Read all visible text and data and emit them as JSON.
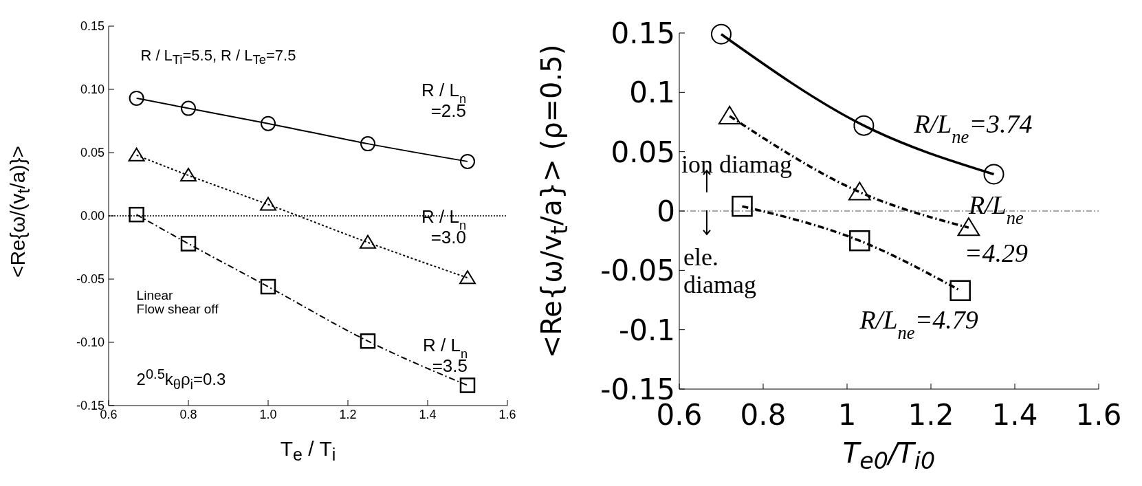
{
  "chart_data": [
    {
      "type": "line",
      "xlabel": "T$_{e}$ / T$_{i}$",
      "ylabel": "<Re{ω/(v$_{t}$/a)}>",
      "x": [
        0.67,
        0.8,
        1.0,
        1.25,
        1.5
      ],
      "series": [
        {
          "name": "R / L$_{n}$\n=2.5",
          "color": "#000000",
          "marker": "circle",
          "line_style": "solid",
          "values": [
            0.093,
            0.085,
            0.073,
            0.057,
            0.043
          ]
        },
        {
          "name": "R / L$_{n}$\n=3.0",
          "color": "#000000",
          "marker": "triangle",
          "line_style": "dotted",
          "values": [
            0.048,
            0.032,
            0.009,
            -0.021,
            -0.049
          ]
        },
        {
          "name": "R / L$_{n}$\n=3.5",
          "color": "#000000",
          "marker": "square",
          "line_style": "dashed",
          "values": [
            0.001,
            -0.022,
            -0.056,
            -0.099,
            -0.134
          ]
        }
      ],
      "xlim": [
        0.6,
        1.6
      ],
      "xticks": [
        0.6,
        0.8,
        {
          "value": 1,
          "label": "1.0"
        },
        1.2,
        1.4,
        1.6
      ],
      "ylim": [
        -0.15,
        0.15
      ],
      "yticks": [
        {
          "value": -0.15,
          "label": "-0.15"
        },
        {
          "value": -0.1,
          "label": "-0.10"
        },
        {
          "value": -0.05,
          "label": "-0.05"
        },
        {
          "value": 0,
          "label": "0.00"
        },
        {
          "value": 0.05,
          "label": "0.05"
        },
        {
          "value": 0.1,
          "label": "0.10"
        },
        {
          "value": 0.15,
          "label": "0.15"
        }
      ],
      "ref_lines": [
        {
          "axis": "y",
          "value": 0,
          "line_style": "dotted",
          "color": "#000000"
        }
      ],
      "annotations": [
        "R / L$_{Ti}$=5.5, R / L$_{Te}$=7.5",
        "Linear\nFlow shear off",
        "2$^{0.5}$k$_{θ}$ρ$_{i}$=0.3"
      ]
    },
    {
      "type": "line",
      "xlabel": "T$_{e0}$/T$_{i0}$",
      "ylabel": "<Re{ω/v$_{t}$/a}> (ρ=0.5)",
      "series": [
        {
          "name": "R/L$_{ne}$=3.74",
          "color": "#000000",
          "marker": "circle",
          "line_style": "solid",
          "x": [
            0.7,
            1.04,
            1.35
          ],
          "values": [
            0.149,
            0.072,
            0.031
          ]
        },
        {
          "name": "R/L$_{ne}$\n=4.29",
          "color": "#000000",
          "marker": "triangle",
          "line_style": "dashed",
          "x": [
            0.72,
            1.03,
            1.29
          ],
          "values": [
            0.08,
            0.016,
            -0.014
          ]
        },
        {
          "name": "R/L$_{ne}$=4.79",
          "color": "#000000",
          "marker": "square",
          "line_style": "dashed",
          "x": [
            0.75,
            1.03,
            1.27
          ],
          "values": [
            0.004,
            -0.025,
            -0.067
          ]
        }
      ],
      "xlim": [
        0.6,
        1.6
      ],
      "xticks": [
        0.6,
        0.8,
        1,
        1.2,
        1.4,
        1.6
      ],
      "ylim": [
        -0.15,
        0.15
      ],
      "yticks": [
        -0.15,
        -0.1,
        -0.05,
        0,
        0.05,
        0.1,
        0.15
      ],
      "ref_lines": [
        {
          "axis": "y",
          "value": 0,
          "line_style": "dashed",
          "color": "#888888"
        }
      ],
      "annotations": [
        "ion diamag",
        "ele.\ndiamag"
      ]
    }
  ]
}
